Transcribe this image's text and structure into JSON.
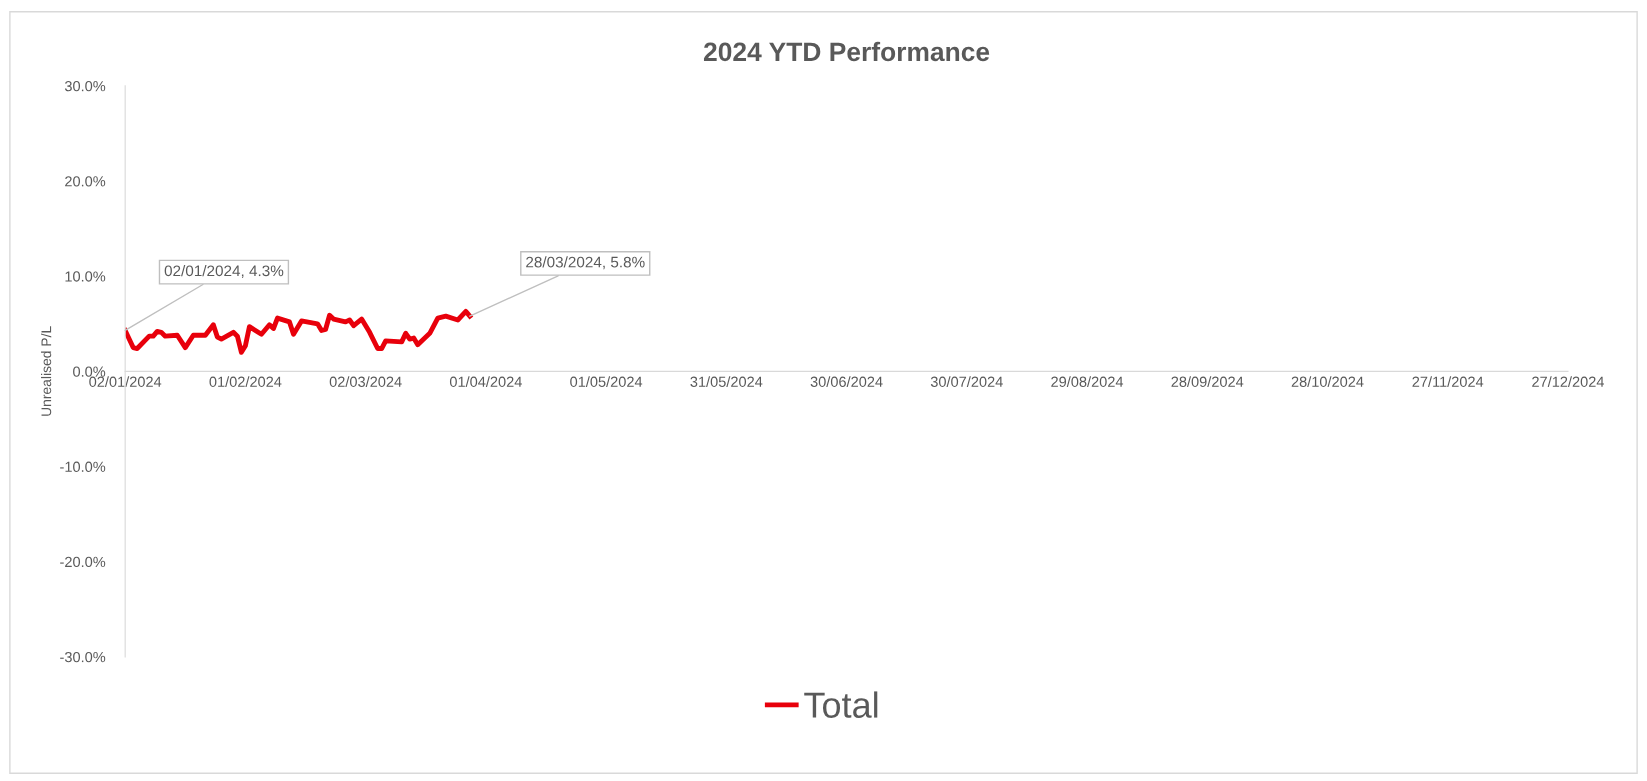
{
  "chart_data": {
    "type": "line",
    "title": "2024 YTD Performance",
    "ylabel": "Unrealised P/L",
    "x": [
      "2024-01-02",
      "2024-01-04",
      "2024-01-05",
      "2024-01-08",
      "2024-01-09",
      "2024-01-10",
      "2024-01-11",
      "2024-01-12",
      "2024-01-15",
      "2024-01-17",
      "2024-01-19",
      "2024-01-22",
      "2024-01-24",
      "2024-01-25",
      "2024-01-26",
      "2024-01-29",
      "2024-01-30",
      "2024-01-31",
      "2024-02-01",
      "2024-02-02",
      "2024-02-05",
      "2024-02-07",
      "2024-02-08",
      "2024-02-09",
      "2024-02-12",
      "2024-02-13",
      "2024-02-15",
      "2024-02-19",
      "2024-02-20",
      "2024-02-21",
      "2024-02-22",
      "2024-02-23",
      "2024-02-26",
      "2024-02-27",
      "2024-02-28",
      "2024-03-01",
      "2024-03-03",
      "2024-03-05",
      "2024-03-06",
      "2024-03-07",
      "2024-03-11",
      "2024-03-12",
      "2024-03-13",
      "2024-03-14",
      "2024-03-15",
      "2024-03-18",
      "2024-03-20",
      "2024-03-22",
      "2024-03-25",
      "2024-03-27",
      "2024-03-28"
    ],
    "series": [
      {
        "name": "Total",
        "color": "#e8000b",
        "values": [
          4.3,
          2.5,
          2.4,
          3.7,
          3.7,
          4.2,
          4.1,
          3.7,
          3.8,
          2.5,
          3.8,
          3.8,
          4.9,
          3.6,
          3.4,
          4.1,
          3.7,
          2.0,
          2.7,
          4.7,
          3.9,
          4.9,
          4.5,
          5.6,
          5.2,
          3.9,
          5.3,
          5.0,
          4.3,
          4.4,
          5.9,
          5.5,
          5.2,
          5.4,
          4.8,
          5.5,
          4.1,
          2.4,
          2.4,
          3.2,
          3.1,
          4.0,
          3.4,
          3.5,
          2.8,
          4.0,
          5.6,
          5.8,
          5.4,
          6.3,
          5.8
        ]
      }
    ],
    "xlim": [
      "2024-01-02",
      "2024-12-27"
    ],
    "xticks": [
      {
        "value": "2024-01-02",
        "label": "02/01/2024"
      },
      {
        "value": "2024-02-01",
        "label": "01/02/2024"
      },
      {
        "value": "2024-03-02",
        "label": "02/03/2024"
      },
      {
        "value": "2024-04-01",
        "label": "01/04/2024"
      },
      {
        "value": "2024-05-01",
        "label": "01/05/2024"
      },
      {
        "value": "2024-05-31",
        "label": "31/05/2024"
      },
      {
        "value": "2024-06-30",
        "label": "30/06/2024"
      },
      {
        "value": "2024-07-30",
        "label": "30/07/2024"
      },
      {
        "value": "2024-08-29",
        "label": "29/08/2024"
      },
      {
        "value": "2024-09-28",
        "label": "28/09/2024"
      },
      {
        "value": "2024-10-28",
        "label": "28/10/2024"
      },
      {
        "value": "2024-11-27",
        "label": "27/11/2024"
      },
      {
        "value": "2024-12-27",
        "label": "27/12/2024"
      }
    ],
    "ylim": [
      -30,
      30
    ],
    "yticks": [
      {
        "value": -30,
        "label": "-30.0%"
      },
      {
        "value": -20,
        "label": "-20.0%"
      },
      {
        "value": -10,
        "label": "-10.0%"
      },
      {
        "value": 0,
        "label": "0.0%"
      },
      {
        "value": 10,
        "label": "10.0%"
      },
      {
        "value": 20,
        "label": "20.0%"
      },
      {
        "value": 30,
        "label": "30.0%"
      }
    ],
    "annotations": [
      {
        "text": "02/01/2024, 4.3%",
        "x": "2024-01-02",
        "y": 4.3
      },
      {
        "text": "28/03/2024, 5.8%",
        "x": "2024-03-28",
        "y": 5.8
      }
    ],
    "grid": false,
    "legend": "bottom",
    "marker": "none",
    "line_style": "solid"
  }
}
